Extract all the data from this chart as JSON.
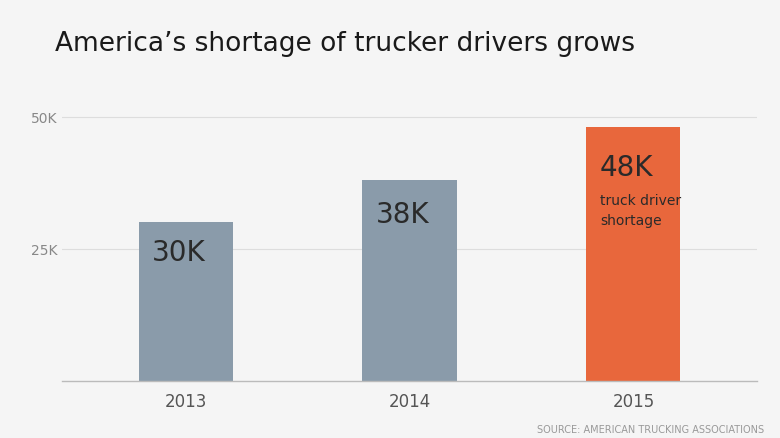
{
  "categories": [
    "2013",
    "2014",
    "2015"
  ],
  "values": [
    30000,
    38000,
    48000
  ],
  "bar_colors": [
    "#8a9baa",
    "#8a9baa",
    "#e8673c"
  ],
  "bar_labels": [
    "30K",
    "38K",
    "48K"
  ],
  "bar_sublabel": [
    "",
    "",
    "truck driver\nshortage"
  ],
  "title": "America’s shortage of trucker drivers grows",
  "title_fontsize": 19,
  "source_text": "SOURCE: AMERICAN TRUCKING ASSOCIATIONS",
  "source_fontsize": 7,
  "yticks": [
    25000,
    50000
  ],
  "ytick_labels": [
    "25K",
    "50K"
  ],
  "ylim": [
    0,
    54000
  ],
  "background_color": "#f5f5f5",
  "label_fontsize": 20,
  "sublabel_fontsize": 10,
  "bar_width": 0.42
}
